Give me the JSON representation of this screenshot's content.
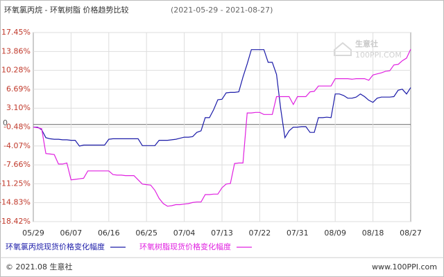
{
  "chart_data": {
    "type": "line",
    "title": "环氧氯丙烷 - 环氧树脂 价格趋势比较",
    "subtitle": "(2021-05-29 - 2021-08-27)",
    "categories": [
      "05/29",
      null,
      null,
      null,
      null,
      null,
      null,
      null,
      null,
      "06/07",
      null,
      null,
      null,
      null,
      null,
      null,
      null,
      null,
      "06/16",
      null,
      null,
      null,
      null,
      null,
      null,
      null,
      null,
      "06/25",
      null,
      null,
      null,
      null,
      null,
      null,
      null,
      null,
      "07/04",
      null,
      null,
      null,
      null,
      null,
      null,
      null,
      null,
      "07/13",
      null,
      null,
      null,
      null,
      null,
      null,
      null,
      null,
      "07/22",
      null,
      null,
      null,
      null,
      null,
      null,
      null,
      null,
      "07/31",
      null,
      null,
      null,
      null,
      null,
      null,
      null,
      null,
      "08/09",
      null,
      null,
      null,
      null,
      null,
      null,
      null,
      null,
      "08/18",
      null,
      null,
      null,
      null,
      null,
      null,
      null,
      null,
      "08/27"
    ],
    "series": [
      {
        "name": "环氧氯丙烷现货价格变化幅度",
        "color": "#1a1aa8",
        "values": [
          -0.48,
          -0.5,
          -1.0,
          -2.5,
          -2.7,
          -2.8,
          -2.8,
          -2.9,
          -2.9,
          -3.0,
          -3.0,
          -4.1,
          -3.9,
          -3.9,
          -3.9,
          -3.9,
          -3.9,
          -3.9,
          -2.8,
          -2.7,
          -2.7,
          -2.7,
          -2.7,
          -2.7,
          -2.7,
          -2.7,
          -4.0,
          -4.0,
          -4.0,
          -4.0,
          -3.0,
          -3.0,
          -3.0,
          -2.9,
          -2.8,
          -2.6,
          -2.4,
          -2.4,
          -2.3,
          -1.5,
          -1.2,
          1.3,
          1.3,
          2.8,
          4.7,
          4.8,
          6.0,
          6.1,
          6.1,
          6.2,
          9.0,
          11.5,
          14.2,
          14.2,
          14.2,
          14.2,
          11.8,
          11.8,
          9.5,
          3.0,
          -2.5,
          -1.2,
          -0.5,
          -0.5,
          -0.4,
          -0.4,
          -1.5,
          -1.5,
          1.3,
          1.3,
          1.4,
          1.3,
          5.8,
          5.8,
          5.5,
          5.0,
          5.0,
          5.2,
          5.8,
          5.3,
          4.6,
          4.2,
          5.0,
          5.2,
          5.2,
          5.2,
          5.3,
          6.5,
          6.7,
          5.8,
          7.0
        ]
      },
      {
        "name": "环氧树脂现货价格变化幅度",
        "color": "#e020e0",
        "values": [
          -0.48,
          -0.6,
          -0.8,
          -5.5,
          -5.6,
          -5.7,
          -7.5,
          -7.5,
          -7.3,
          -10.5,
          -10.4,
          -10.3,
          -10.2,
          -8.8,
          -8.8,
          -8.8,
          -8.8,
          -8.8,
          -8.8,
          -9.5,
          -9.6,
          -9.6,
          -9.7,
          -9.7,
          -9.7,
          -10.5,
          -11.3,
          -11.4,
          -11.5,
          -12.5,
          -14.0,
          -15.0,
          -15.5,
          -15.4,
          -15.2,
          -15.2,
          -15.1,
          -15.0,
          -14.8,
          -14.7,
          -14.7,
          -13.3,
          -13.3,
          -13.2,
          -13.2,
          -12.0,
          -11.3,
          -11.2,
          -7.4,
          -7.3,
          -7.3,
          2.2,
          2.2,
          2.3,
          2.3,
          1.9,
          1.9,
          1.9,
          5.3,
          5.3,
          5.3,
          5.3,
          3.8,
          5.3,
          5.3,
          5.3,
          6.2,
          6.3,
          7.3,
          7.3,
          7.3,
          7.3,
          8.7,
          8.7,
          8.7,
          8.7,
          8.6,
          8.7,
          8.7,
          8.7,
          8.4,
          9.4,
          9.6,
          9.8,
          10.1,
          10.2,
          11.3,
          11.4,
          12.1,
          12.6,
          14.3
        ]
      }
    ],
    "ylim": [
      -18.42,
      17.45
    ],
    "yticks": [
      {
        "value": 17.45,
        "label": "17.45%"
      },
      {
        "value": 13.86,
        "label": "13.86%"
      },
      {
        "value": 10.28,
        "label": "10.28%"
      },
      {
        "value": 6.69,
        "label": "6.69%"
      },
      {
        "value": 3.1,
        "label": "3.10%"
      },
      {
        "value": -0.48,
        "label": "-0.48%"
      },
      {
        "value": -4.07,
        "label": "-4.07%"
      },
      {
        "value": -7.66,
        "label": "-7.66%"
      },
      {
        "value": -11.25,
        "label": "-11.25%"
      },
      {
        "value": -14.83,
        "label": "-14.83%"
      },
      {
        "value": -18.42,
        "label": "-18.42%"
      }
    ],
    "zero_tick": {
      "value": 0,
      "label": "0"
    },
    "grid": true,
    "watermark": {
      "text": "生意社",
      "sub": "100PPI.COM"
    }
  },
  "footer": {
    "left": "© 2021.08 生意社",
    "right": "www.100PPI.com"
  }
}
